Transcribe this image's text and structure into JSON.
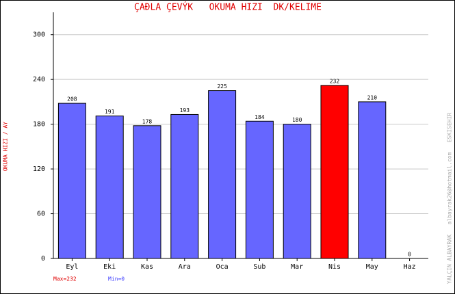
{
  "chart_data": {
    "type": "bar",
    "title": "ÇAÐLA ÇEVÝK   OKUMA HIZI  DK/KELIME",
    "y_label": "OKUMA HIZI / AY",
    "side_note": "YALÇIN ALBAYRAK   albayrak26@hotmail.com   ESKISEHIR",
    "categories": [
      "Eyl",
      "Eki",
      "Kas",
      "Ara",
      "Oca",
      "Sub",
      "Mar",
      "Nis",
      "May",
      "Haz"
    ],
    "values": [
      208,
      191,
      178,
      193,
      225,
      184,
      180,
      232,
      210,
      0
    ],
    "colors": [
      "#6666ff",
      "#6666ff",
      "#6666ff",
      "#6666ff",
      "#6666ff",
      "#6666ff",
      "#6666ff",
      "#ff0000",
      "#6666ff",
      "#6666ff"
    ],
    "ylim": [
      0,
      330
    ],
    "yticks": [
      0,
      60,
      120,
      180,
      240,
      300
    ],
    "grid": true,
    "annotations": [
      {
        "text": "Max=232",
        "color": "#e00000"
      },
      {
        "text": "Min=0",
        "color": "#4444ff"
      }
    ]
  }
}
